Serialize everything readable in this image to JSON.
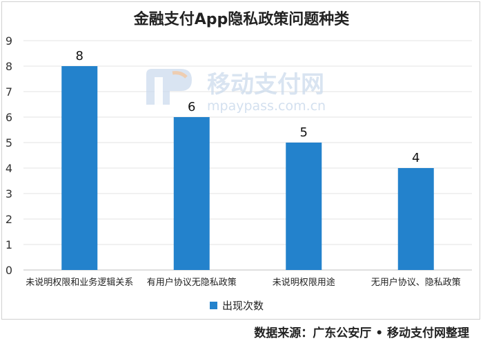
{
  "chart_data": {
    "type": "bar",
    "title": "金融支付App隐私政策问题种类",
    "categories": [
      "未说明权限和业务逻辑关系",
      "有用户协议无隐私政策",
      "未说明权限用途",
      "无用户协议、隐私政策"
    ],
    "series": [
      {
        "name": "出现次数",
        "values": [
          8,
          6,
          5,
          4
        ]
      }
    ],
    "ylim": [
      0,
      9
    ],
    "yticks": [
      0,
      1,
      2,
      3,
      4,
      5,
      6,
      7,
      8,
      9
    ],
    "grid": true,
    "legend_position": "bottom",
    "bar_color": "#2382cc"
  },
  "source_text": "数据来源：广东公安厅 • 移动支付网整理",
  "watermark": {
    "name": "移动支付网",
    "url": "mpaypass.com.cn"
  }
}
